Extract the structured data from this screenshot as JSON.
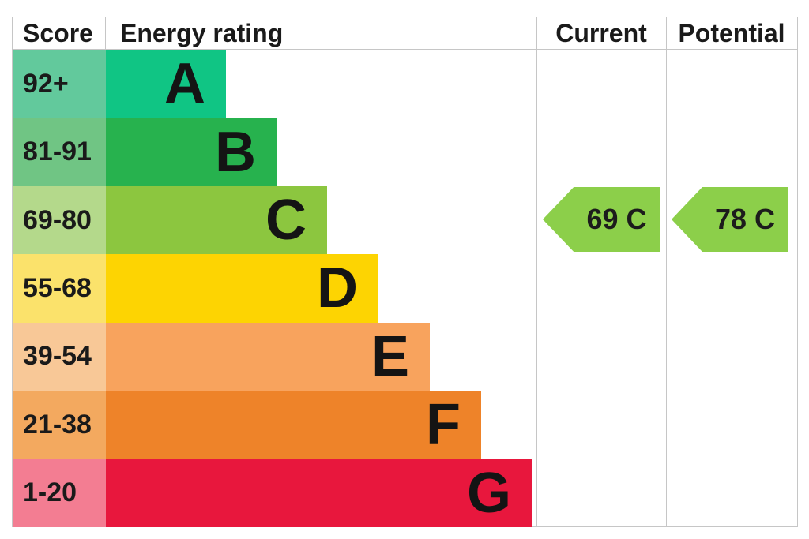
{
  "chart_data": {
    "type": "bar",
    "columns": [
      "Score",
      "Energy rating",
      "Current",
      "Potential"
    ],
    "bands": [
      {
        "letter": "A",
        "score": "92+",
        "bar_color": "#10c584",
        "score_color": "#62c99c",
        "width_px": "126px"
      },
      {
        "letter": "B",
        "score": "81-91",
        "bar_color": "#27b24e",
        "score_color": "#70c584",
        "width_px": "190px"
      },
      {
        "letter": "C",
        "score": "69-80",
        "bar_color": "#8cc63f",
        "score_color": "#b4d98b",
        "width_px": "254px"
      },
      {
        "letter": "D",
        "score": "55-68",
        "bar_color": "#fdd402",
        "score_color": "#fbe26b",
        "width_px": "319px"
      },
      {
        "letter": "E",
        "score": "39-54",
        "bar_color": "#f8a35d",
        "score_color": "#f8c897",
        "width_px": "384px"
      },
      {
        "letter": "F",
        "score": "21-38",
        "bar_color": "#ee8329",
        "score_color": "#f3a95f",
        "width_px": "449px"
      },
      {
        "letter": "G",
        "score": "1-20",
        "bar_color": "#e8173d",
        "score_color": "#f37d92",
        "width_px": "513px"
      }
    ],
    "current": {
      "value": "69",
      "band": "C",
      "color": "#8ccf4a"
    },
    "potential": {
      "value": "78",
      "band": "C",
      "color": "#8ccf4a"
    }
  }
}
